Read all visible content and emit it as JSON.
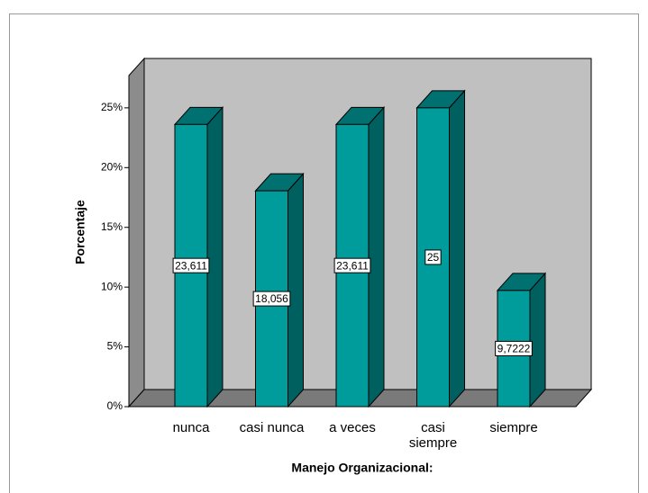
{
  "chart_data": {
    "type": "bar3d",
    "categories": [
      "nunca",
      "casi nunca",
      "a veces",
      "casi siempre",
      "siempre"
    ],
    "values": [
      23.611,
      18.056,
      23.611,
      25,
      9.7222
    ],
    "value_labels": [
      "23,611",
      "18,056",
      "23,611",
      "25",
      "9,7222"
    ],
    "color": "#009c9c",
    "ylim": [
      0,
      27.7
    ],
    "yticks": [
      {
        "value": 0,
        "label": "0%"
      },
      {
        "value": 5,
        "label": "5%"
      },
      {
        "value": 10,
        "label": "10%"
      },
      {
        "value": 15,
        "label": "15%"
      },
      {
        "value": 20,
        "label": "20%"
      },
      {
        "value": 25,
        "label": "25%"
      }
    ],
    "y_label": "Porcentaje",
    "x_label": "Manejo Organizacional:"
  }
}
